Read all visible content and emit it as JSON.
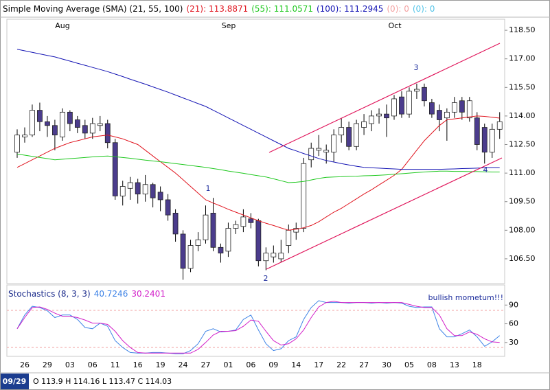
{
  "header": {
    "title": "Simple Moving Average (SMA) (21, 55, 100)"
  },
  "legend_extra": [
    {
      "text": "(0): 0",
      "color": "#f4a0a0"
    },
    {
      "text": "(0): 0",
      "color": "#4fc3e8"
    }
  ],
  "status": {
    "date": "09/29",
    "ohlc": "O 113.9 H 114.16 L 113.47 C 114.03"
  },
  "chart_data": [
    {
      "type": "candlestick",
      "months": [
        "Aug",
        "Sep",
        "Oct"
      ],
      "annotations": [
        "1",
        "2",
        "3",
        "4"
      ],
      "categories": [
        null,
        "26",
        null,
        null,
        "29",
        null,
        null,
        "03",
        null,
        null,
        "06",
        null,
        null,
        "11",
        null,
        null,
        "16",
        null,
        null,
        "19",
        null,
        null,
        "24",
        null,
        null,
        "27",
        null,
        null,
        "01",
        null,
        null,
        "06",
        null,
        null,
        "09",
        null,
        null,
        "14",
        null,
        null,
        "17",
        null,
        null,
        "22",
        null,
        null,
        "27",
        null,
        null,
        "30",
        null,
        null,
        "05",
        null,
        null,
        "08",
        null,
        null,
        "13",
        null,
        null,
        "18",
        null,
        null,
        null
      ],
      "open": [
        112.1,
        112.9,
        113.0,
        114.3,
        113.7,
        113.5,
        112.9,
        114.2,
        113.8,
        113.5,
        113.1,
        113.5,
        113.6,
        112.6,
        109.8,
        110.2,
        110.5,
        109.9,
        110.4,
        110.0,
        109.6,
        108.9,
        107.8,
        106.0,
        107.2,
        107.5,
        108.9,
        107.1,
        106.9,
        108.1,
        108.2,
        108.6,
        108.5,
        106.4,
        106.6,
        106.5,
        107.2,
        107.9,
        108.1,
        111.7,
        112.2,
        112.1,
        112.1,
        113.0,
        113.4,
        112.4,
        113.4,
        113.6,
        114.0,
        114.1,
        114.0,
        115.0,
        114.1,
        115.3,
        115.5,
        114.7,
        114.3,
        113.9,
        114.2,
        114.8,
        113.9,
        113.9,
        113.4,
        112.1,
        113.3
      ],
      "high": [
        113.3,
        113.4,
        114.6,
        114.7,
        114.0,
        113.8,
        114.4,
        114.3,
        114.0,
        113.8,
        113.9,
        114.0,
        113.8,
        112.8,
        110.6,
        110.8,
        110.7,
        110.9,
        110.5,
        110.3,
        109.9,
        109.1,
        108.0,
        107.5,
        107.9,
        109.3,
        109.7,
        107.3,
        108.4,
        108.5,
        109.1,
        108.9,
        108.6,
        107.1,
        107.2,
        107.5,
        108.3,
        108.4,
        111.8,
        112.6,
        113.0,
        112.5,
        113.3,
        113.9,
        113.7,
        113.8,
        114.1,
        114.3,
        114.4,
        114.6,
        115.1,
        115.3,
        115.5,
        115.7,
        115.7,
        114.9,
        114.6,
        114.4,
        115.0,
        115.0,
        115.0,
        114.2,
        113.6,
        113.6,
        114.2
      ],
      "low": [
        111.8,
        112.6,
        112.9,
        113.2,
        112.9,
        112.2,
        112.7,
        113.2,
        113.1,
        112.8,
        112.8,
        113.2,
        112.3,
        109.6,
        109.3,
        109.6,
        109.4,
        109.5,
        109.2,
        109.0,
        108.5,
        107.4,
        105.4,
        105.8,
        106.9,
        107.3,
        106.9,
        106.3,
        106.6,
        107.8,
        107.9,
        108.1,
        106.1,
        105.9,
        106.3,
        106.3,
        106.8,
        107.5,
        107.9,
        111.3,
        111.9,
        111.5,
        111.6,
        112.6,
        112.2,
        112.2,
        113.0,
        113.2,
        113.6,
        112.9,
        113.8,
        113.9,
        113.9,
        114.9,
        114.5,
        113.9,
        113.2,
        112.7,
        113.9,
        113.8,
        113.7,
        112.2,
        111.5,
        111.8,
        112.8
      ],
      "close": [
        113.0,
        113.0,
        114.3,
        113.7,
        113.5,
        113.0,
        114.2,
        113.6,
        113.4,
        113.1,
        113.6,
        113.6,
        112.6,
        109.8,
        110.3,
        110.5,
        109.9,
        110.4,
        109.7,
        109.6,
        108.8,
        107.8,
        106.0,
        107.2,
        107.5,
        108.8,
        107.1,
        106.8,
        108.1,
        108.3,
        108.7,
        108.4,
        106.4,
        106.8,
        106.8,
        106.8,
        108.0,
        108.1,
        111.5,
        112.3,
        112.3,
        112.2,
        113.0,
        113.4,
        112.4,
        113.6,
        113.7,
        114.0,
        114.1,
        113.9,
        114.9,
        114.1,
        115.3,
        115.4,
        114.8,
        114.1,
        113.8,
        114.2,
        114.7,
        114.2,
        114.8,
        112.5,
        112.1,
        113.3,
        113.7
      ],
      "up_color": "#ffffff",
      "down_color": "#4b3c8c",
      "series": [
        {
          "name": "(21): 113.8871",
          "color": "#e0141e",
          "values": [
            111.3,
            111.5,
            111.7,
            111.9,
            112.1,
            112.3,
            112.45,
            112.6,
            112.7,
            112.8,
            112.9,
            112.95,
            113.0,
            112.9,
            112.8,
            112.65,
            112.5,
            112.2,
            111.9,
            111.6,
            111.3,
            111.0,
            110.65,
            110.3,
            109.95,
            109.6,
            109.43,
            109.27,
            109.1,
            108.95,
            108.8,
            108.65,
            108.5,
            108.37,
            108.25,
            108.12,
            108.0,
            108.05,
            108.13,
            108.25,
            108.45,
            108.7,
            108.95,
            109.15,
            109.4,
            109.65,
            109.9,
            110.13,
            110.38,
            110.63,
            110.88,
            111.2,
            111.7,
            112.2,
            112.7,
            113.1,
            113.5,
            113.8,
            113.85,
            113.9,
            113.95,
            114.0,
            113.98,
            113.93,
            113.89
          ]
        },
        {
          "name": "(55): 111.0571",
          "color": "#1ec81e",
          "values": [
            112.0,
            111.94,
            111.88,
            111.82,
            111.76,
            111.7,
            111.73,
            111.76,
            111.79,
            111.82,
            111.85,
            111.88,
            111.9,
            111.86,
            111.82,
            111.78,
            111.73,
            111.68,
            111.64,
            111.6,
            111.55,
            111.5,
            111.45,
            111.4,
            111.35,
            111.3,
            111.24,
            111.18,
            111.11,
            111.05,
            110.99,
            110.92,
            110.86,
            110.8,
            110.7,
            110.6,
            110.5,
            110.52,
            110.56,
            110.64,
            110.72,
            110.78,
            110.8,
            110.81,
            110.83,
            110.84,
            110.86,
            110.87,
            110.89,
            110.91,
            110.94,
            110.97,
            111.0,
            111.03,
            111.06,
            111.08,
            111.1,
            111.1,
            111.09,
            111.09,
            111.08,
            111.08,
            111.07,
            111.06,
            111.06
          ]
        },
        {
          "name": "(100): 111.2945",
          "color": "#1414b4",
          "values": [
            117.5,
            117.42,
            117.34,
            117.26,
            117.18,
            117.1,
            116.99,
            116.88,
            116.77,
            116.66,
            116.55,
            116.44,
            116.33,
            116.2,
            116.07,
            115.93,
            115.8,
            115.67,
            115.53,
            115.39,
            115.25,
            115.1,
            114.95,
            114.8,
            114.65,
            114.5,
            114.3,
            114.1,
            113.9,
            113.7,
            113.5,
            113.3,
            113.1,
            112.9,
            112.7,
            112.5,
            112.3,
            112.17,
            112.03,
            111.9,
            111.77,
            111.66,
            111.58,
            111.5,
            111.43,
            111.36,
            111.3,
            111.28,
            111.26,
            111.24,
            111.22,
            111.2,
            111.2,
            111.2,
            111.2,
            111.2,
            111.2,
            111.21,
            111.22,
            111.24,
            111.25,
            111.26,
            111.28,
            111.29,
            111.29
          ]
        }
      ],
      "ylim": [
        105.2,
        119.08
      ],
      "yticks": [
        {
          "value": 118.5,
          "label": "118.50"
        },
        {
          "value": 117,
          "label": "117.00"
        },
        {
          "value": 115.5,
          "label": "115.50"
        },
        {
          "value": 114,
          "label": "114.00"
        },
        {
          "value": 112.5,
          "label": "112.50"
        },
        {
          "value": 111,
          "label": "111.00"
        },
        {
          "value": 109.5,
          "label": "109.50"
        },
        {
          "value": 108,
          "label": "108.00"
        },
        {
          "value": 106.5,
          "label": "106.50"
        }
      ]
    },
    {
      "type": "line",
      "title": "Stochastics (8, 3, 3)",
      "annotation": "bullish mometum!!!",
      "series": [
        {
          "name": "40.7246",
          "color": "#3c82e6",
          "values": [
            52,
            74,
            88,
            86,
            81,
            70,
            74,
            74,
            67,
            54,
            52,
            61,
            56,
            33,
            22,
            14,
            13,
            13,
            14,
            14,
            13,
            12,
            12,
            17,
            28,
            48,
            52,
            47,
            48,
            50,
            67,
            74,
            50,
            28,
            17,
            20,
            33,
            39,
            67,
            86,
            97,
            94,
            94,
            94,
            93,
            94,
            94,
            93,
            94,
            93,
            94,
            93,
            88,
            86,
            87,
            87,
            52,
            39,
            39,
            44,
            50,
            39,
            24,
            31,
            41
          ]
        },
        {
          "name": "30.2401",
          "color": "#d21ec8",
          "values": [
            52,
            70,
            86,
            87,
            83,
            77,
            72,
            72,
            70,
            66,
            61,
            61,
            59,
            48,
            33,
            22,
            14,
            13,
            13,
            13,
            13,
            13,
            13,
            13,
            19,
            30,
            42,
            48,
            48,
            49,
            56,
            66,
            64,
            48,
            33,
            26,
            28,
            36,
            50,
            70,
            87,
            94,
            96,
            94,
            94,
            94,
            94,
            94,
            94,
            94,
            94,
            94,
            91,
            88,
            86,
            86,
            74,
            52,
            41,
            41,
            47,
            43,
            36,
            31,
            30
          ]
        }
      ],
      "ylim": [
        7.8,
        122.2
      ],
      "yticks": [
        90,
        60,
        30
      ]
    }
  ]
}
